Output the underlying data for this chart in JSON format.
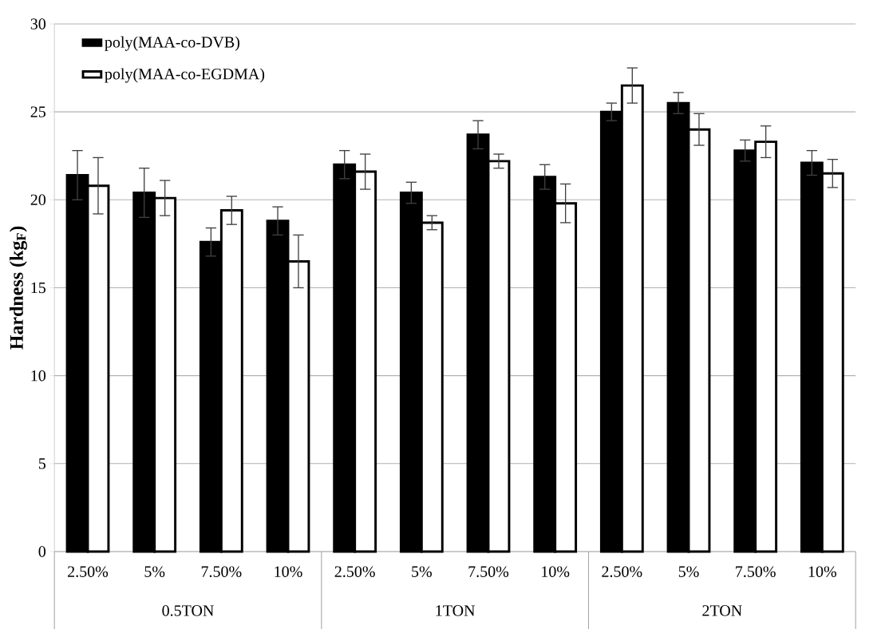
{
  "chart_data": {
    "type": "bar",
    "ylabel": "Hardness (kg$_{F}$)",
    "categories": [
      "2.50%",
      "5%",
      "7.50%",
      "10%",
      "2.50%",
      "5%",
      "7.50%",
      "10%",
      "2.50%",
      "5%",
      "7.50%",
      "10%"
    ],
    "annotations": [
      "0.5TON",
      "1TON",
      "2TON"
    ],
    "series": [
      {
        "name": "poly(MAA-co-DVB)",
        "color": "#000000",
        "values": [
          21.4,
          20.4,
          17.6,
          18.8,
          22.0,
          20.4,
          23.7,
          21.3,
          25.0,
          25.5,
          22.8,
          22.1
        ],
        "errors": [
          1.4,
          1.4,
          0.8,
          0.8,
          0.8,
          0.6,
          0.8,
          0.7,
          0.5,
          0.6,
          0.6,
          0.7
        ]
      },
      {
        "name": "poly(MAA-co-EGDMA)",
        "color": "#ffffff",
        "values": [
          20.8,
          20.1,
          19.4,
          16.5,
          21.6,
          18.7,
          22.2,
          19.8,
          26.5,
          24.0,
          23.3,
          21.5
        ],
        "errors": [
          1.6,
          1.0,
          0.8,
          1.5,
          1.0,
          0.4,
          0.4,
          1.1,
          1.0,
          0.9,
          0.9,
          0.8
        ]
      }
    ],
    "ylim": [
      0,
      30
    ],
    "yticks": [
      0,
      5,
      10,
      15,
      20,
      25,
      30
    ],
    "grid": "y",
    "legend": "top left"
  }
}
